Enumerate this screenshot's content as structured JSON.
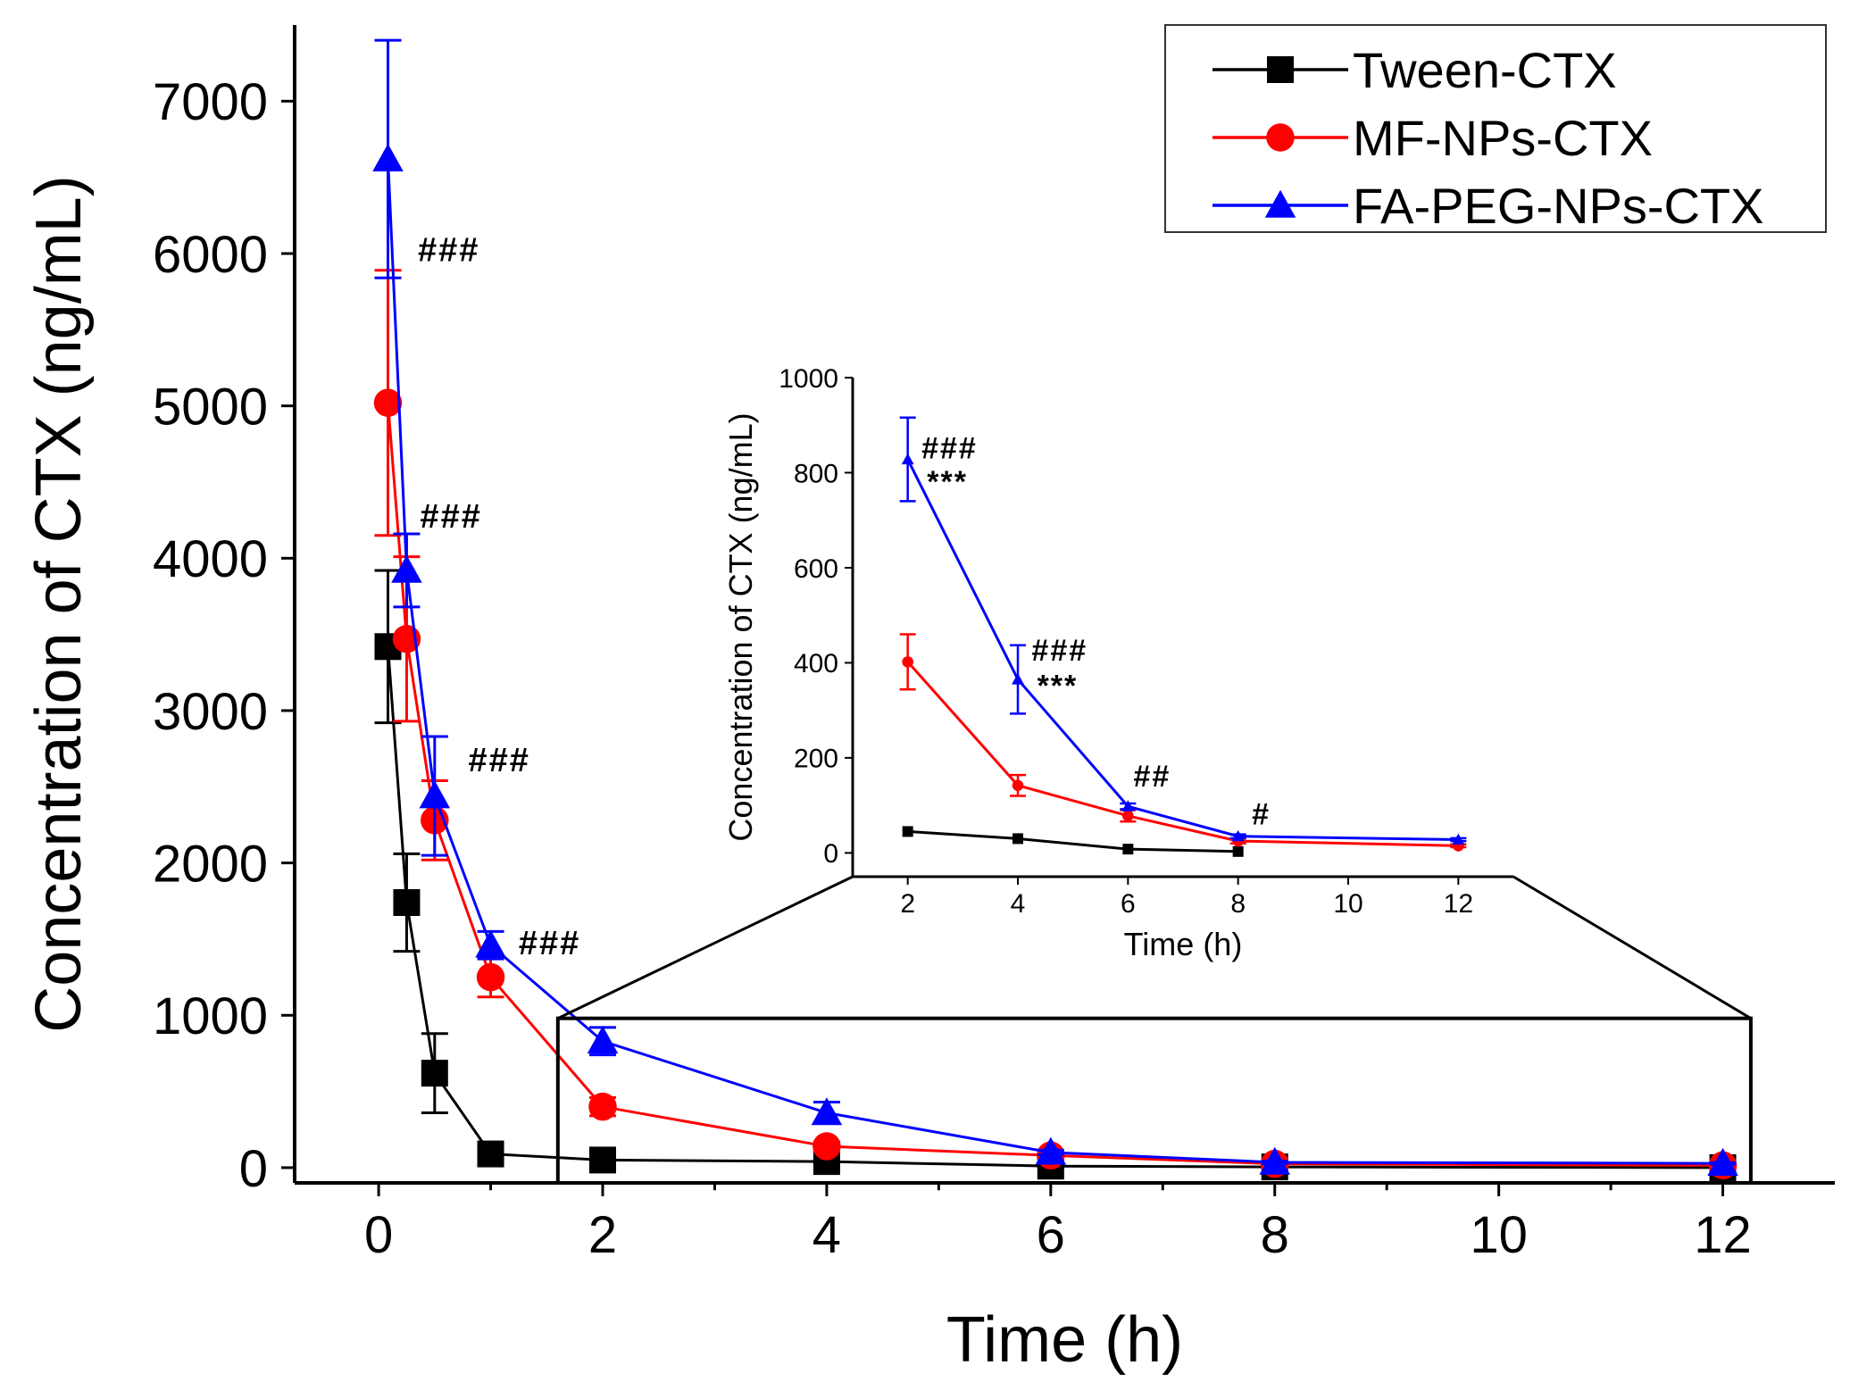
{
  "chart_data": [
    {
      "type": "line",
      "xlabel": "Time (h)",
      "ylabel": "Concentration of CTX (ng/mL)",
      "xlim": [
        -0.75,
        13
      ],
      "ylim": [
        -100,
        7500
      ],
      "xticks": [
        "0",
        "2",
        "4",
        "6",
        "8",
        "10",
        "12"
      ],
      "yticks": [
        "0",
        "1000",
        "2000",
        "3000",
        "4000",
        "5000",
        "6000",
        "7000"
      ],
      "legend": "top-right",
      "grid": false,
      "series": [
        {
          "name": "Tween-CTX",
          "color": "#000000",
          "marker": "square",
          "x": [
            0.083,
            0.25,
            0.5,
            1,
            2,
            4,
            6,
            8,
            12
          ],
          "y": [
            3420,
            1740,
            620,
            90,
            50,
            40,
            10,
            5,
            0
          ],
          "err": [
            500,
            320,
            260,
            30,
            20,
            15,
            10,
            5,
            3
          ]
        },
        {
          "name": "MF-NPs-CTX",
          "color": "#ff0000",
          "marker": "circle",
          "x": [
            0.083,
            0.25,
            0.5,
            1,
            2,
            4,
            6,
            8,
            12
          ],
          "y": [
            5020,
            3470,
            2280,
            1250,
            400,
            140,
            80,
            25,
            15
          ],
          "err": [
            870,
            540,
            260,
            130,
            60,
            30,
            15,
            8,
            5
          ]
        },
        {
          "name": "FA-PEG-NPs-CTX",
          "color": "#0000ff",
          "marker": "triangle",
          "x": [
            0.083,
            0.25,
            0.5,
            1,
            2,
            4,
            6,
            8,
            12
          ],
          "y": [
            6620,
            3920,
            2440,
            1460,
            830,
            360,
            100,
            35,
            28
          ],
          "err": [
            780,
            240,
            390,
            90,
            90,
            70,
            15,
            8,
            5
          ]
        }
      ],
      "annotations": [
        {
          "text": "###",
          "x": 0.35,
          "y": 5950
        },
        {
          "text": "###",
          "x": 0.37,
          "y": 4200
        },
        {
          "text": "###",
          "x": 0.8,
          "y": 2600
        },
        {
          "text": "###",
          "x": 1.25,
          "y": 1400
        }
      ],
      "zoom_box": {
        "x": [
          1.6,
          12.25
        ],
        "y": [
          -100,
          980
        ]
      }
    },
    {
      "type": "line",
      "role": "inset",
      "xlabel": "Time (h)",
      "ylabel": "Concentration of CTX (ng/mL)",
      "xlim": [
        1,
        13
      ],
      "ylim": [
        -50,
        1000
      ],
      "xticks": [
        "2",
        "4",
        "6",
        "8",
        "10",
        "12"
      ],
      "yticks": [
        "0",
        "200",
        "400",
        "600",
        "800",
        "1000"
      ],
      "series": [
        {
          "name": "Tween-CTX",
          "color": "#000000",
          "x": [
            2,
            4,
            6,
            8
          ],
          "y": [
            45,
            30,
            8,
            3
          ],
          "err": [
            0,
            0,
            0,
            0
          ]
        },
        {
          "name": "MF-NPs-CTX",
          "color": "#ff0000",
          "x": [
            2,
            4,
            6,
            8,
            12
          ],
          "y": [
            402,
            142,
            78,
            25,
            15
          ],
          "err": [
            58,
            22,
            12,
            5,
            3
          ]
        },
        {
          "name": "FA-PEG-NPs-CTX",
          "color": "#0000ff",
          "x": [
            2,
            4,
            6,
            8,
            12
          ],
          "y": [
            828,
            365,
            98,
            35,
            28
          ],
          "err": [
            88,
            72,
            6,
            4,
            3
          ]
        }
      ],
      "annotations": [
        {
          "text": "###",
          "x": 2.25,
          "y": 830
        },
        {
          "text": "***",
          "x": 2.35,
          "y": 760
        },
        {
          "text": "###",
          "x": 4.25,
          "y": 405
        },
        {
          "text": "***",
          "x": 4.35,
          "y": 330
        },
        {
          "text": "##",
          "x": 6.1,
          "y": 140
        },
        {
          "text": "#",
          "x": 8.25,
          "y": 60
        }
      ]
    }
  ]
}
